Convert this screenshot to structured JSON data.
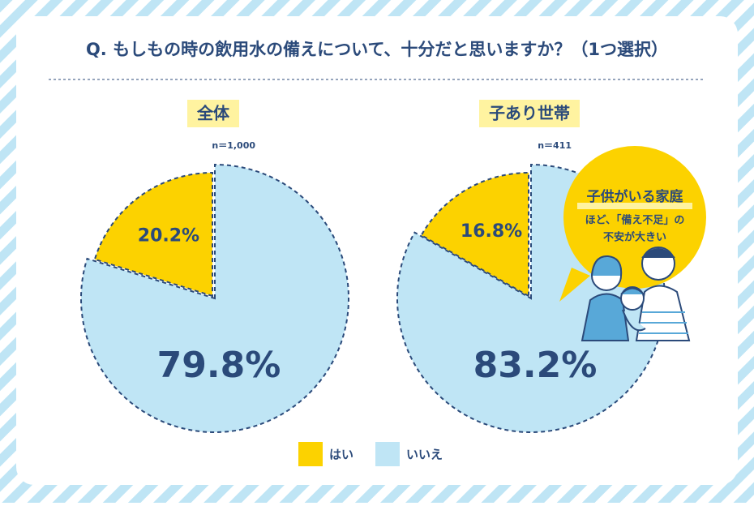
{
  "title": "Q. もしもの時の飲用水の備えについて、十分だと思いますか？（1つ選択）",
  "chart_data": [
    {
      "type": "pie",
      "title": "全体",
      "subtitle": "n＝1,000",
      "categories": [
        "はい",
        "いいえ"
      ],
      "values": [
        20.2,
        79.8
      ],
      "value_labels": [
        "20.2%",
        "79.8%"
      ],
      "colors": [
        "#fcd200",
        "#bfe5f5"
      ]
    },
    {
      "type": "pie",
      "title": "子あり世帯",
      "subtitle": "n＝411",
      "categories": [
        "はい",
        "いいえ"
      ],
      "values": [
        16.8,
        83.2
      ],
      "value_labels": [
        "16.8%",
        "83.2%"
      ],
      "colors": [
        "#fcd200",
        "#bfe5f5"
      ]
    }
  ],
  "callout": {
    "title": "子供がいる家庭",
    "lines": [
      "ほど、「備え不足」の",
      "不安が大きい"
    ]
  }
}
